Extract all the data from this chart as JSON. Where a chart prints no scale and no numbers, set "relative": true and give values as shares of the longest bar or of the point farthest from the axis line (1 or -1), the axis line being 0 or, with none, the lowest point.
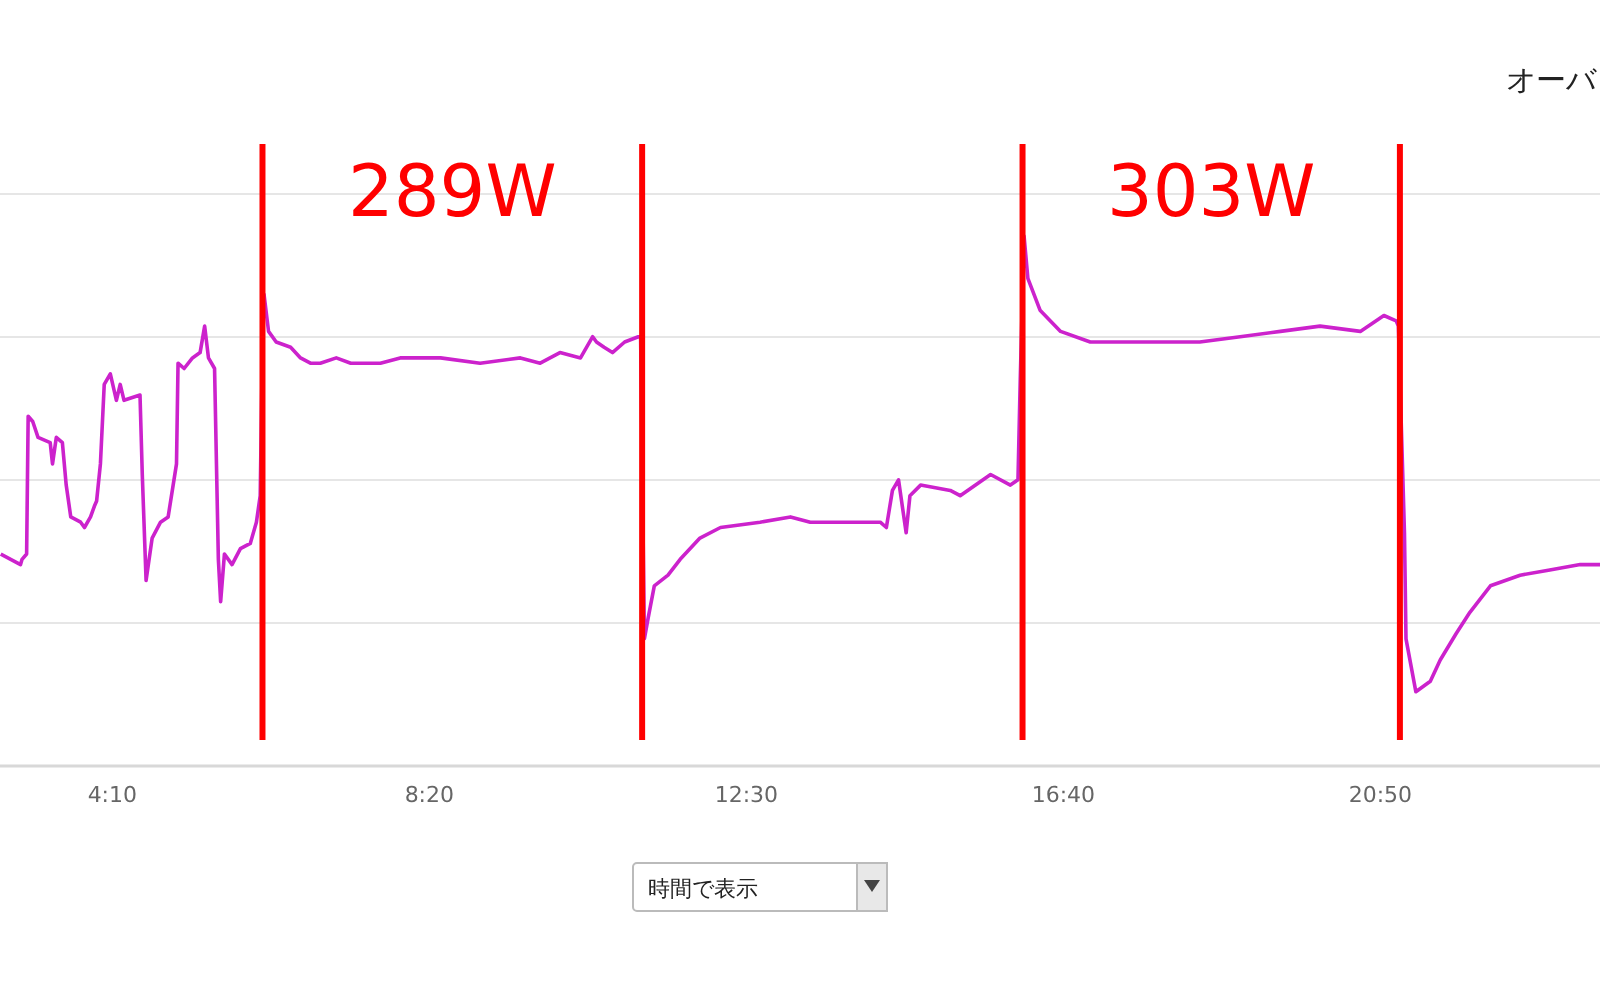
{
  "chart_data": {
    "type": "line",
    "relative": true,
    "grid": "y",
    "xlim": [
      2.69,
      23.72
    ],
    "xticks": [
      {
        "value": 4.1667,
        "label": "4:10"
      },
      {
        "value": 8.3333,
        "label": "8:20"
      },
      {
        "value": 12.5,
        "label": "12:30"
      },
      {
        "value": 16.6667,
        "label": "16:40"
      },
      {
        "value": 20.8333,
        "label": "20:50"
      }
    ],
    "x": [
      2.7,
      2.96,
      2.98,
      3.04,
      3.06,
      3.12,
      3.19,
      3.35,
      3.38,
      3.43,
      3.51,
      3.56,
      3.62,
      3.75,
      3.8,
      3.88,
      3.93,
      3.96,
      4.01,
      4.06,
      4.14,
      4.22,
      4.27,
      4.32,
      4.53,
      4.56,
      4.61,
      4.69,
      4.8,
      4.9,
      5.01,
      5.03,
      5.11,
      5.22,
      5.32,
      5.38,
      5.43,
      5.51,
      5.56,
      5.59,
      5.64,
      5.74,
      5.85,
      5.98,
      6.06,
      6.11,
      6.14,
      6.16,
      6.22,
      6.32,
      6.51,
      6.64,
      6.77,
      6.9,
      7.11,
      7.3,
      7.69,
      7.95,
      8.48,
      9.0,
      9.53,
      9.79,
      10.05,
      10.32,
      10.48,
      10.53,
      10.63,
      10.74,
      10.9,
      11.08,
      11.11,
      11.16,
      11.21,
      11.29,
      11.47,
      11.63,
      11.89,
      12.16,
      12.68,
      13.08,
      13.34,
      14.0,
      14.26,
      14.34,
      14.42,
      14.5,
      14.6,
      14.65,
      14.79,
      15.18,
      15.31,
      15.71,
      15.97,
      16.07,
      16.1,
      16.15,
      16.2,
      16.36,
      16.63,
      17.02,
      17.41,
      17.94,
      18.46,
      18.99,
      19.52,
      20.04,
      20.57,
      20.88,
      21.04,
      21.07,
      21.15,
      21.17,
      21.3,
      21.49,
      21.62,
      21.83,
      22.01,
      22.28,
      22.67,
      23.06,
      23.46,
      23.72
    ],
    "series": [
      {
        "color": "#cc22cc",
        "values": [
          0.4,
          0.38,
          0.39,
          0.4,
          0.66,
          0.65,
          0.62,
          0.61,
          0.57,
          0.62,
          0.61,
          0.53,
          0.47,
          0.46,
          0.45,
          0.47,
          0.49,
          0.5,
          0.57,
          0.72,
          0.74,
          0.69,
          0.72,
          0.69,
          0.7,
          0.55,
          0.35,
          0.43,
          0.46,
          0.47,
          0.57,
          0.76,
          0.75,
          0.77,
          0.78,
          0.83,
          0.77,
          0.75,
          0.39,
          0.31,
          0.4,
          0.38,
          0.41,
          0.42,
          0.46,
          0.51,
          0.8,
          0.89,
          0.82,
          0.8,
          0.79,
          0.77,
          0.76,
          0.76,
          0.77,
          0.76,
          0.76,
          0.77,
          0.77,
          0.76,
          0.77,
          0.76,
          0.78,
          0.77,
          0.81,
          0.8,
          0.79,
          0.78,
          0.8,
          0.81,
          0.81,
          0.24,
          0.28,
          0.34,
          0.36,
          0.39,
          0.43,
          0.45,
          0.46,
          0.47,
          0.46,
          0.46,
          0.46,
          0.45,
          0.52,
          0.54,
          0.44,
          0.51,
          0.53,
          0.52,
          0.51,
          0.55,
          0.53,
          0.54,
          0.73,
          1.0,
          0.92,
          0.86,
          0.82,
          0.8,
          0.8,
          0.8,
          0.8,
          0.81,
          0.82,
          0.83,
          0.82,
          0.85,
          0.84,
          0.83,
          0.44,
          0.24,
          0.14,
          0.16,
          0.2,
          0.25,
          0.29,
          0.34,
          0.36,
          0.37,
          0.38,
          0.38
        ]
      }
    ],
    "ref_lines": [
      {
        "axis": "x",
        "value": 6.14,
        "color": "#ff0000"
      },
      {
        "axis": "x",
        "value": 11.13,
        "color": "#ff0000"
      },
      {
        "axis": "x",
        "value": 16.13,
        "color": "#ff0000"
      },
      {
        "axis": "x",
        "value": 21.09,
        "color": "#ff0000"
      }
    ],
    "annotations": [
      "289W",
      "303W",
      "オーバ",
      "時間で表示"
    ]
  }
}
